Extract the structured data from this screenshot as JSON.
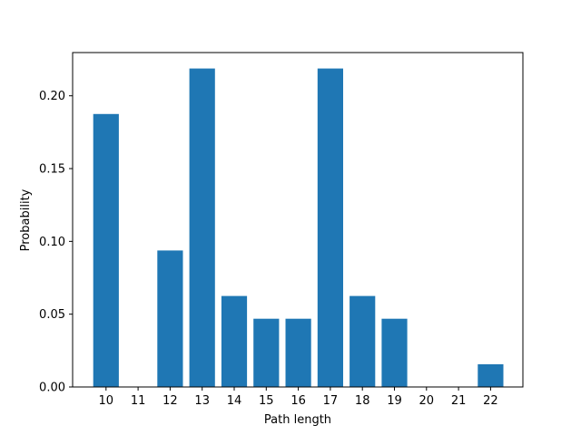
{
  "chart_data": {
    "type": "bar",
    "title": "",
    "xlabel": "Path length",
    "ylabel": "Probability",
    "categories": [
      "10",
      "11",
      "12",
      "13",
      "14",
      "15",
      "16",
      "17",
      "18",
      "19",
      "20",
      "21",
      "22"
    ],
    "values": [
      0.1875,
      0.0,
      0.09375,
      0.21875,
      0.0625,
      0.046875,
      0.046875,
      0.21875,
      0.0625,
      0.046875,
      0.0,
      0.0,
      0.015625
    ],
    "ylim": [
      0,
      0.2297
    ],
    "yticks": [
      0.0,
      0.05,
      0.1,
      0.15,
      0.2
    ],
    "ytick_labels": [
      "0.00",
      "0.05",
      "0.10",
      "0.15",
      "0.20"
    ],
    "grid": false,
    "legend": "none",
    "bar_color": "#1f77b4"
  }
}
